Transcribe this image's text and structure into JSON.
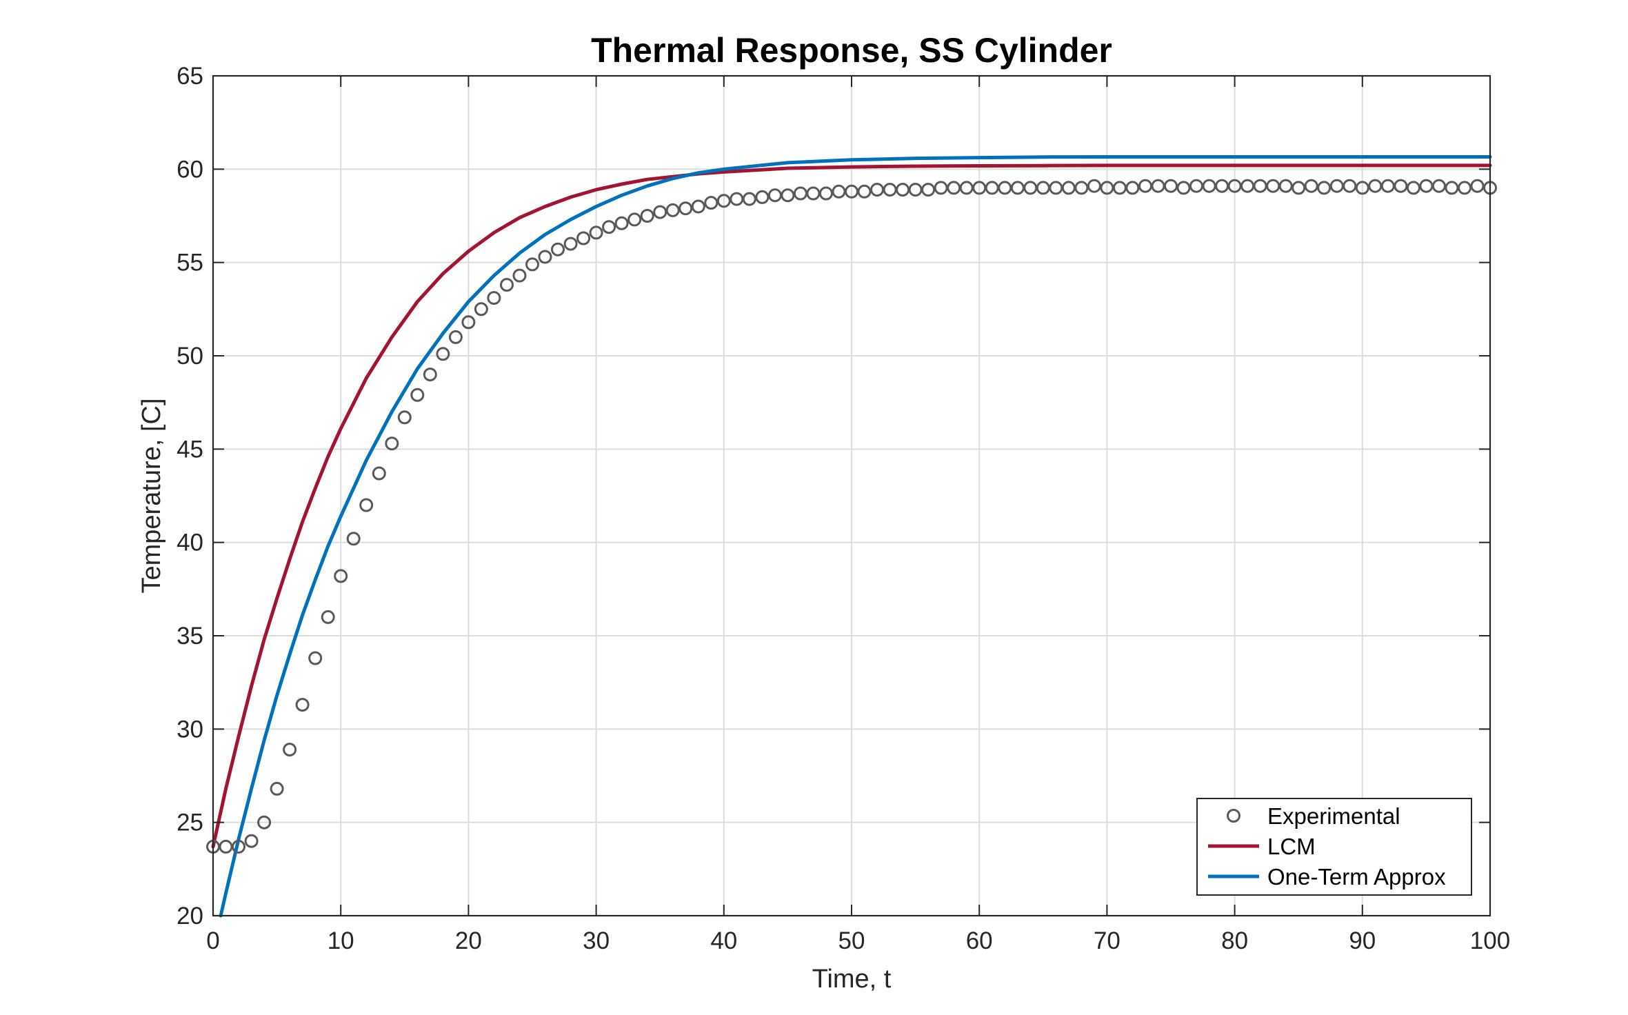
{
  "chart_data": {
    "type": "line",
    "title": "Thermal Response, SS Cylinder",
    "xlabel": "Time, t",
    "ylabel": "Temperature, [C]",
    "xlim": [
      0,
      100
    ],
    "ylim": [
      20,
      65
    ],
    "xticks": [
      0,
      10,
      20,
      30,
      40,
      50,
      60,
      70,
      80,
      90,
      100
    ],
    "yticks": [
      20,
      25,
      30,
      35,
      40,
      45,
      50,
      55,
      60,
      65
    ],
    "grid": true,
    "legend_position": "bottom-right",
    "series": [
      {
        "name": "Experimental",
        "kind": "scatter",
        "marker": "circle-open",
        "color": "#595959",
        "x": [
          0,
          1,
          2,
          3,
          4,
          5,
          6,
          7,
          8,
          9,
          10,
          11,
          12,
          13,
          14,
          15,
          16,
          17,
          18,
          19,
          20,
          21,
          22,
          23,
          24,
          25,
          26,
          27,
          28,
          29,
          30,
          31,
          32,
          33,
          34,
          35,
          36,
          37,
          38,
          39,
          40,
          41,
          42,
          43,
          44,
          45,
          46,
          47,
          48,
          49,
          50,
          51,
          52,
          53,
          54,
          55,
          56,
          57,
          58,
          59,
          60,
          61,
          62,
          63,
          64,
          65,
          66,
          67,
          68,
          69,
          70,
          71,
          72,
          73,
          74,
          75,
          76,
          77,
          78,
          79,
          80,
          81,
          82,
          83,
          84,
          85,
          86,
          87,
          88,
          89,
          90,
          91,
          92,
          93,
          94,
          95,
          96,
          97,
          98,
          99,
          100
        ],
        "y": [
          23.7,
          23.7,
          23.7,
          24.0,
          25.0,
          26.8,
          28.9,
          31.3,
          33.8,
          36.0,
          38.2,
          40.2,
          42.0,
          43.7,
          45.3,
          46.7,
          47.9,
          49.0,
          50.1,
          51.0,
          51.8,
          52.5,
          53.1,
          53.8,
          54.3,
          54.9,
          55.3,
          55.7,
          56.0,
          56.3,
          56.6,
          56.9,
          57.1,
          57.3,
          57.5,
          57.7,
          57.8,
          57.9,
          58.0,
          58.2,
          58.3,
          58.4,
          58.4,
          58.5,
          58.6,
          58.6,
          58.7,
          58.7,
          58.7,
          58.8,
          58.8,
          58.8,
          58.9,
          58.9,
          58.9,
          58.9,
          58.9,
          59.0,
          59.0,
          59.0,
          59.0,
          59.0,
          59.0,
          59.0,
          59.0,
          59.0,
          59.0,
          59.0,
          59.0,
          59.1,
          59.0,
          59.0,
          59.0,
          59.1,
          59.1,
          59.1,
          59.0,
          59.1,
          59.1,
          59.1,
          59.1,
          59.1,
          59.1,
          59.1,
          59.1,
          59.0,
          59.1,
          59.0,
          59.1,
          59.1,
          59.0,
          59.1,
          59.1,
          59.1,
          59.0,
          59.1,
          59.1,
          59.0,
          59.0,
          59.1,
          59.0
        ]
      },
      {
        "name": "LCM",
        "kind": "line",
        "color": "#A2142F",
        "x": [
          0,
          1,
          2,
          3,
          4,
          5,
          6,
          7,
          8,
          9,
          10,
          12,
          14,
          16,
          18,
          20,
          22,
          24,
          26,
          28,
          30,
          32,
          34,
          36,
          38,
          40,
          45,
          50,
          55,
          60,
          65,
          70,
          75,
          80,
          85,
          90,
          95,
          100
        ],
        "y": [
          23.7,
          26.8,
          29.6,
          32.3,
          34.8,
          37.0,
          39.1,
          41.1,
          42.9,
          44.6,
          46.1,
          48.8,
          51.0,
          52.9,
          54.4,
          55.6,
          56.6,
          57.4,
          58.0,
          58.5,
          58.9,
          59.2,
          59.45,
          59.6,
          59.75,
          59.85,
          60.05,
          60.12,
          60.16,
          60.18,
          60.19,
          60.2,
          60.2,
          60.2,
          60.2,
          60.2,
          60.2,
          60.2
        ]
      },
      {
        "name": "One-Term Approx",
        "kind": "line",
        "color": "#0072BD",
        "x": [
          0.6,
          1,
          2,
          3,
          4,
          5,
          6,
          7,
          8,
          9,
          10,
          12,
          14,
          16,
          18,
          20,
          22,
          24,
          26,
          28,
          30,
          32,
          34,
          36,
          38,
          40,
          45,
          50,
          55,
          60,
          65,
          70,
          75,
          80,
          85,
          90,
          95,
          100
        ],
        "y": [
          20.0,
          21.2,
          24.1,
          26.8,
          29.4,
          31.8,
          34.0,
          36.1,
          38.0,
          39.8,
          41.4,
          44.4,
          47.0,
          49.3,
          51.2,
          52.9,
          54.3,
          55.5,
          56.5,
          57.3,
          58.0,
          58.6,
          59.1,
          59.5,
          59.8,
          60.0,
          60.35,
          60.5,
          60.58,
          60.62,
          60.65,
          60.66,
          60.66,
          60.66,
          60.66,
          60.66,
          60.66,
          60.66
        ]
      }
    ]
  }
}
